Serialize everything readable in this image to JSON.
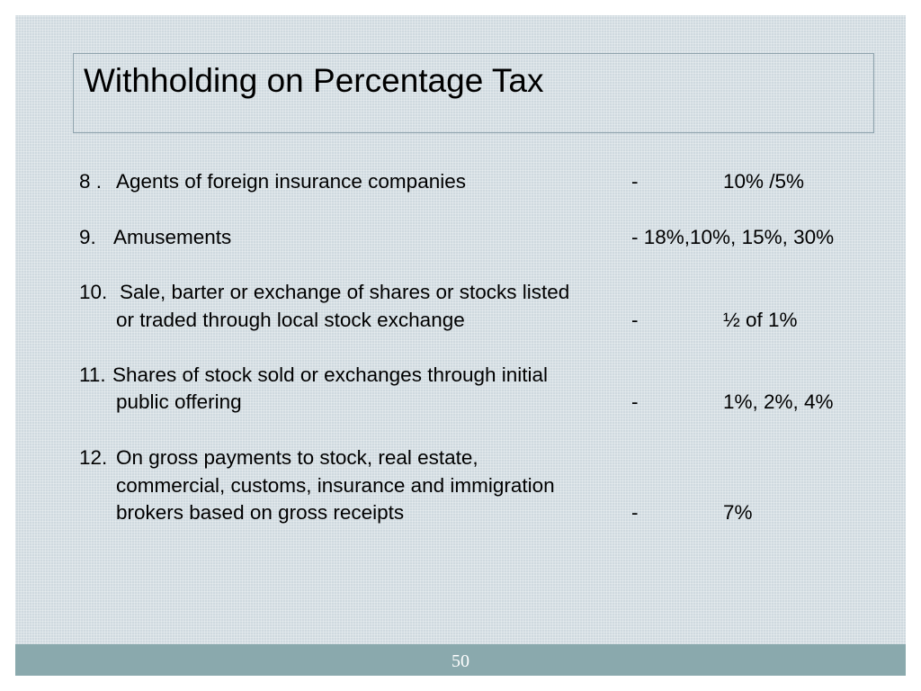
{
  "title": "Withholding on Percentage Tax",
  "items": [
    {
      "num": "8 .",
      "lines": [
        "Agents of foreign insurance companies"
      ],
      "dash": "-",
      "rate": "10% /5%"
    },
    {
      "num": "9.",
      "lines": [
        "Amusements"
      ],
      "rate": "- 18%,10%, 15%, 30%"
    },
    {
      "num": "10.",
      "lines": [
        "Sale,  barter or exchange of shares or stocks listed",
        "or traded through local stock exchange"
      ],
      "dash": "-",
      "rate": "½ of 1%"
    },
    {
      "num": "11.",
      "lines": [
        "Shares of stock sold or exchanges through initial",
        "public offering"
      ],
      "dash": "-",
      "rate": "1%, 2%, 4%"
    },
    {
      "num": "12.",
      "lines": [
        "On gross payments to stock, real estate,",
        "commercial, customs, insurance and immigration",
        "brokers based on gross receipts"
      ],
      "dash": "-",
      "rate": "7%"
    }
  ],
  "footer": {
    "page_number": "50"
  }
}
